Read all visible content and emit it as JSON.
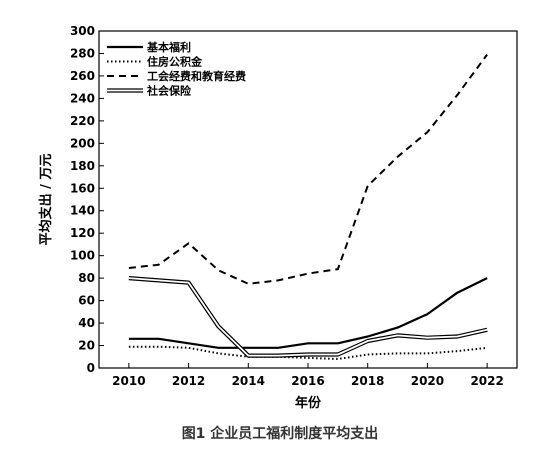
{
  "chart_data": {
    "type": "line",
    "title": "图1 企业员工福利制度平均支出",
    "xlabel": "年份",
    "ylabel": "平均支出 / 万元",
    "xlim": [
      2009,
      2023
    ],
    "ylim": [
      0,
      300
    ],
    "x_ticks": [
      2010,
      2012,
      2014,
      2016,
      2018,
      2020,
      2022
    ],
    "y_ticks": [
      0,
      20,
      40,
      60,
      80,
      100,
      120,
      140,
      160,
      180,
      200,
      220,
      240,
      260,
      280,
      300
    ],
    "x": [
      2010,
      2011,
      2012,
      2013,
      2014,
      2015,
      2016,
      2017,
      2018,
      2019,
      2020,
      2021,
      2022
    ],
    "legend_position": "top-left",
    "grid": false,
    "series": [
      {
        "name": "基本福利",
        "style": "solid",
        "values": [
          26,
          26,
          22,
          18,
          18,
          18,
          22,
          22,
          28,
          36,
          48,
          67,
          80
        ]
      },
      {
        "name": "住房公积金",
        "style": "dotted",
        "values": [
          19,
          19,
          18,
          13,
          10,
          10,
          9,
          8,
          12,
          13,
          13,
          15,
          18
        ]
      },
      {
        "name": "工会经费和教育经费",
        "style": "dashed",
        "values": [
          89,
          92,
          111,
          87,
          75,
          78,
          84,
          88,
          162,
          188,
          210,
          243,
          279
        ]
      },
      {
        "name": "社会保险",
        "style": "double",
        "values": [
          80,
          78,
          76,
          37,
          11,
          11,
          12,
          12,
          24,
          29,
          27,
          28,
          34
        ]
      }
    ]
  }
}
